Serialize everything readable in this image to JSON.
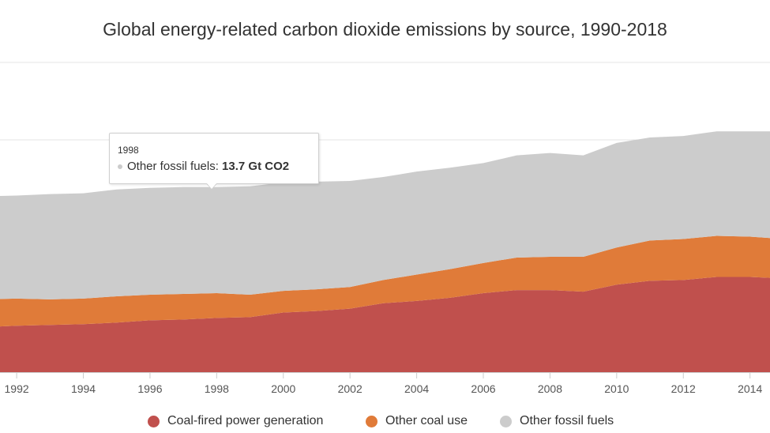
{
  "chart_data": {
    "type": "area",
    "stacked": true,
    "title": "Global energy-related carbon dioxide emissions by source, 1990-2018",
    "x": [
      1991,
      1992,
      1993,
      1994,
      1995,
      1996,
      1997,
      1998,
      1999,
      2000,
      2001,
      2002,
      2003,
      2004,
      2005,
      2006,
      2007,
      2008,
      2009,
      2010,
      2011,
      2012,
      2013,
      2014,
      2015
    ],
    "xlim": [
      1991.5,
      2014.6
    ],
    "x_tick_labels": [
      "1992",
      "1994",
      "1996",
      "1998",
      "2000",
      "2002",
      "2004",
      "2006",
      "2008",
      "2010",
      "2012",
      "2014"
    ],
    "unit": "Gt CO2",
    "ylim": [
      0,
      40
    ],
    "grid": true,
    "legend_position": "bottom",
    "series": [
      {
        "name": "Coal-fired power generation",
        "color": "#c0504d",
        "values": [
          5.8,
          6.0,
          6.1,
          6.2,
          6.4,
          6.7,
          6.8,
          7.0,
          7.1,
          7.7,
          7.9,
          8.2,
          8.9,
          9.2,
          9.6,
          10.2,
          10.6,
          10.6,
          10.4,
          11.3,
          11.8,
          11.9,
          12.3,
          12.3,
          12.1
        ]
      },
      {
        "name": "Other coal use",
        "color": "#e07b39",
        "values": [
          3.6,
          3.5,
          3.3,
          3.3,
          3.4,
          3.3,
          3.3,
          3.2,
          2.9,
          2.8,
          2.8,
          2.8,
          3.0,
          3.4,
          3.7,
          3.9,
          4.2,
          4.3,
          4.5,
          4.8,
          5.2,
          5.3,
          5.3,
          5.2,
          5.1
        ]
      },
      {
        "name": "Other fossil fuels",
        "color": "#cccccc",
        "values": [
          13.3,
          13.3,
          13.6,
          13.6,
          13.8,
          13.8,
          13.8,
          13.7,
          14.0,
          14.0,
          13.9,
          13.7,
          13.3,
          13.3,
          13.1,
          12.9,
          13.2,
          13.4,
          13.1,
          13.5,
          13.3,
          13.3,
          13.5,
          13.6,
          13.9
        ]
      }
    ],
    "tooltip": {
      "year": "1998",
      "series": "Other fossil fuels",
      "label": "Other fossil fuels: ",
      "value": "13.7 Gt CO2"
    }
  }
}
